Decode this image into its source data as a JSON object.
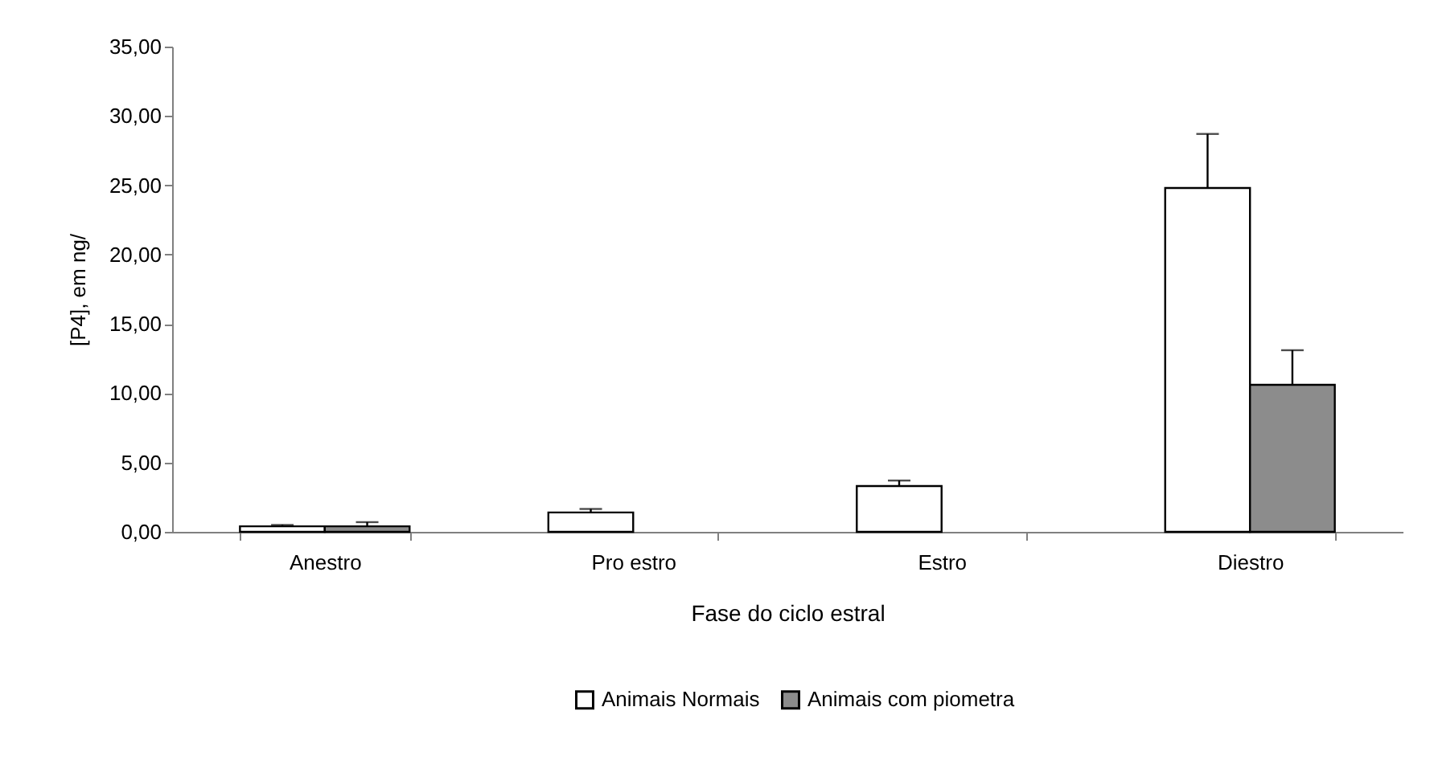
{
  "chart_data": {
    "type": "bar",
    "xlabel": "Fase do ciclo estral",
    "ylabel": "[P4], em ng/",
    "categories": [
      "Anestro",
      "Pro estro",
      "Estro",
      "Diestro"
    ],
    "series": [
      {
        "name": "Animais Normais",
        "color": "#ffffff",
        "values": [
          0.4,
          1.4,
          3.3,
          24.8
        ],
        "errors": [
          [
            0.4,
            0.5
          ],
          [
            1.4,
            1.65
          ],
          [
            3.3,
            3.7
          ],
          [
            24.8,
            28.7
          ]
        ]
      },
      {
        "name": "Animais com piometra",
        "color": "#8c8c8c",
        "values": [
          0.4,
          null,
          null,
          10.6
        ],
        "errors": [
          [
            0.4,
            0.7
          ],
          null,
          null,
          [
            10.6,
            13.1
          ]
        ]
      }
    ],
    "ylim": [
      0,
      35
    ],
    "yticks": [
      {
        "value": 0,
        "label": "0,00"
      },
      {
        "value": 5,
        "label": "5,00"
      },
      {
        "value": 10,
        "label": "10,00"
      },
      {
        "value": 15,
        "label": "15,00"
      },
      {
        "value": 20,
        "label": "20,00"
      },
      {
        "value": 25,
        "label": "25,00"
      },
      {
        "value": 30,
        "label": "30,00"
      },
      {
        "value": 35,
        "label": "35,00"
      }
    ],
    "grid": false,
    "legend": "bottom"
  }
}
